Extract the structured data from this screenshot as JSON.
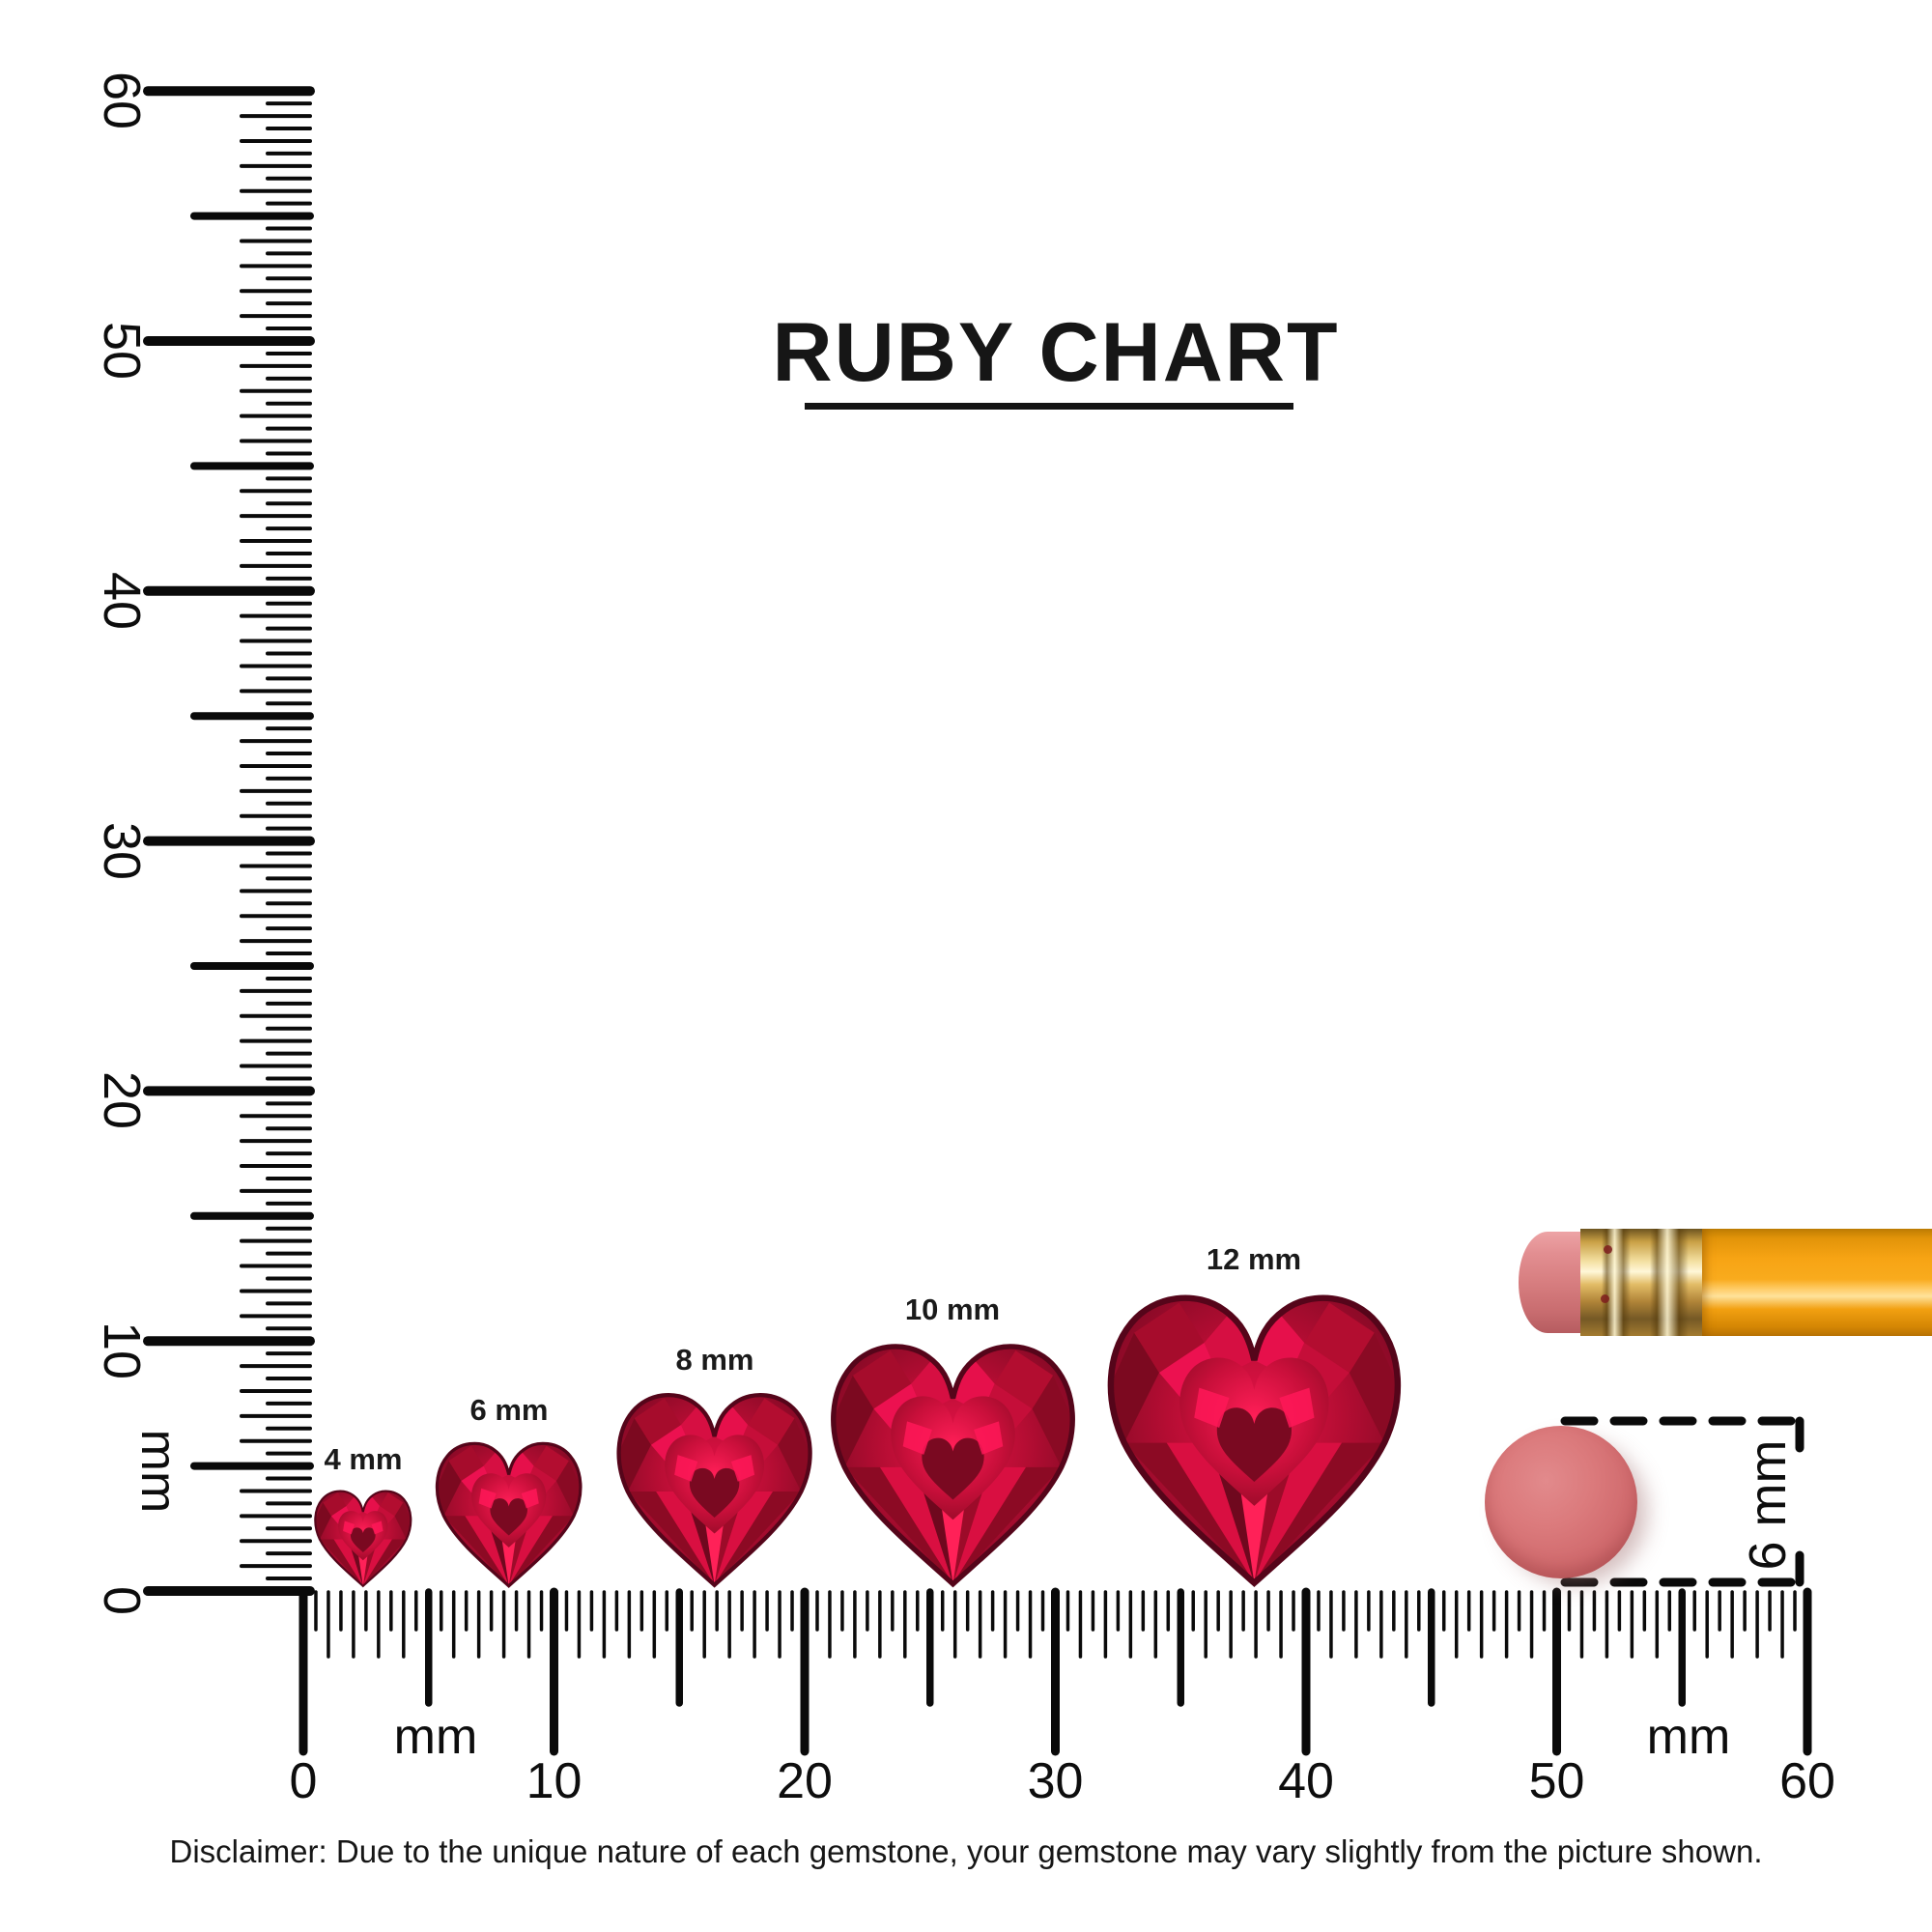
{
  "title": "RUBY CHART",
  "rulers": {
    "vertical": {
      "unit": "mm",
      "labels": [
        "0",
        "10",
        "20",
        "30",
        "40",
        "50",
        "60"
      ]
    },
    "horizontal": {
      "unit_left": "mm",
      "unit_right": "mm",
      "labels": [
        "0",
        "10",
        "20",
        "30",
        "40",
        "50",
        "60"
      ]
    }
  },
  "gems": [
    {
      "label": "4 mm",
      "size_mm": 4
    },
    {
      "label": "6 mm",
      "size_mm": 6
    },
    {
      "label": "8 mm",
      "size_mm": 8
    },
    {
      "label": "10 mm",
      "size_mm": 10
    },
    {
      "label": "12 mm",
      "size_mm": 12
    }
  ],
  "reference": {
    "disc_label": "6 mm"
  },
  "disclaimer": "Disclaimer: Due to the unique nature of each gemstone, your gemstone may vary slightly from the picture shown.",
  "colors": {
    "ink": "#0d0d0d",
    "ruby_bright": "#e6104b",
    "ruby_mid": "#b50d33",
    "ruby_dark": "#6f081e",
    "pencil_body": "#f7a414",
    "pencil_ferrule": "#e2bc66",
    "pencil_eraser": "#d87f81",
    "disc": "#db7a7c"
  }
}
